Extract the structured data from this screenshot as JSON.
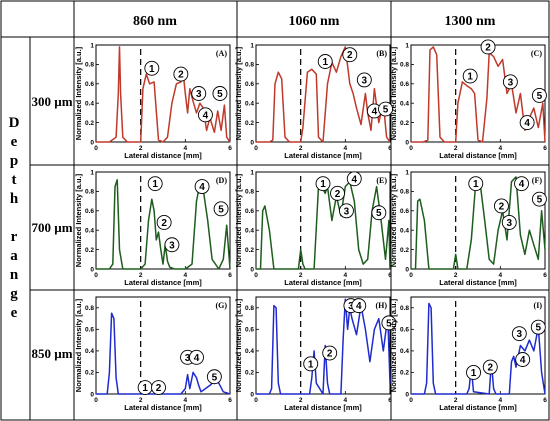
{
  "table": {
    "column_headers": [
      "860 nm",
      "1060 nm",
      "1300 nm"
    ],
    "row_headers": [
      "300 µm",
      "700 µm",
      "850 µm"
    ],
    "depth_letters": [
      "D",
      "e",
      "p",
      "t",
      "h",
      "r",
      "a",
      "n",
      "g",
      "e"
    ]
  },
  "chart_data": [
    {
      "panel": "(A)",
      "type": "line",
      "color": "#c0392b",
      "xlabel": "Lateral distance [mm]",
      "ylabel": "Normalized Intensity [a.u.]",
      "xlim": [
        0,
        6
      ],
      "ylim": [
        0,
        1
      ],
      "xticks": [
        "0",
        "2",
        "4",
        "6"
      ],
      "yticks": [
        "0",
        "0.2",
        "0.4",
        "0.6",
        "0.8",
        "1"
      ],
      "dashed_x": 2,
      "x": [
        0,
        0.6,
        0.9,
        1.0,
        1.05,
        1.1,
        1.2,
        1.4,
        1.6,
        2.0,
        2.1,
        2.25,
        2.4,
        2.6,
        2.8,
        3.0,
        3.2,
        3.4,
        3.6,
        3.8,
        3.9,
        4.0,
        4.1,
        4.2,
        4.35,
        4.5,
        4.65,
        4.8,
        4.95,
        5.1,
        5.3,
        5.45,
        5.6,
        5.75,
        5.85,
        6.0
      ],
      "y": [
        0,
        0,
        0.05,
        0.5,
        0.98,
        0.5,
        0.05,
        0,
        0,
        0,
        0.55,
        0.7,
        0.6,
        0.62,
        0.02,
        0,
        0.05,
        0.4,
        0.6,
        0.62,
        0.72,
        0.5,
        0.3,
        0.55,
        0.42,
        0.3,
        0.4,
        0.35,
        0.12,
        0.25,
        0.1,
        0.32,
        0.12,
        0.38,
        0.05,
        0
      ],
      "labels": [
        {
          "text": "1",
          "x": 2.5,
          "y": 0.76
        },
        {
          "text": "2",
          "x": 3.8,
          "y": 0.7
        },
        {
          "text": "3",
          "x": 4.6,
          "y": 0.5
        },
        {
          "text": "4",
          "x": 4.9,
          "y": 0.28
        },
        {
          "text": "5",
          "x": 5.55,
          "y": 0.5
        }
      ]
    },
    {
      "panel": "(B)",
      "type": "line",
      "color": "#c0392b",
      "xlabel": "Lateral distance [mm]",
      "ylabel": "Normalized Intensity [a.u.]",
      "xlim": [
        0,
        6
      ],
      "ylim": [
        0,
        1
      ],
      "xticks": [
        "0",
        "2",
        "4",
        "6"
      ],
      "yticks": [
        "0",
        "0.2",
        "0.4",
        "0.6",
        "0.8",
        "1"
      ],
      "dashed_x": 2,
      "x": [
        0,
        0.6,
        0.75,
        0.85,
        1.0,
        1.15,
        1.3,
        1.5,
        2.0,
        2.1,
        2.3,
        2.5,
        2.7,
        2.8,
        3.0,
        3.2,
        3.4,
        3.6,
        3.8,
        4.0,
        4.2,
        4.35,
        4.5,
        4.7,
        4.9,
        5.0,
        5.15,
        5.3,
        5.5,
        5.7,
        5.85,
        6.0
      ],
      "y": [
        0,
        0,
        0.02,
        0.6,
        0.72,
        0.65,
        0.05,
        0,
        0,
        0.15,
        0.72,
        0.75,
        0.7,
        0.05,
        0,
        0.6,
        0.82,
        0.72,
        0.88,
        0.98,
        0.6,
        0.5,
        0.35,
        0.18,
        0.5,
        0.3,
        0.12,
        0.55,
        0.2,
        0.4,
        0.05,
        0
      ],
      "labels": [
        {
          "text": "1",
          "x": 3.1,
          "y": 0.83
        },
        {
          "text": "2",
          "x": 4.2,
          "y": 0.9
        },
        {
          "text": "3",
          "x": 4.85,
          "y": 0.64
        },
        {
          "text": "4",
          "x": 5.3,
          "y": 0.32
        },
        {
          "text": "5",
          "x": 5.8,
          "y": 0.34
        }
      ]
    },
    {
      "panel": "(C)",
      "type": "line",
      "color": "#c0392b",
      "xlabel": "Lateral distance [mm]",
      "ylabel": "Normalized Intensity [a.u.]",
      "xlim": [
        0,
        6
      ],
      "ylim": [
        0,
        1
      ],
      "xticks": [
        "0",
        "2",
        "4",
        "6"
      ],
      "yticks": [
        "0",
        "0.2",
        "0.4",
        "0.6",
        "0.8",
        "1"
      ],
      "dashed_x": 2,
      "x": [
        0,
        0.55,
        0.75,
        0.85,
        1.0,
        1.15,
        1.3,
        1.5,
        2.0,
        2.1,
        2.3,
        2.5,
        2.7,
        2.85,
        3.0,
        3.2,
        3.4,
        3.5,
        3.7,
        3.9,
        4.1,
        4.3,
        4.5,
        4.7,
        4.9,
        5.1,
        5.3,
        5.5,
        5.7,
        5.9,
        6.0
      ],
      "y": [
        0,
        0,
        0.02,
        0.95,
        0.98,
        0.9,
        0.05,
        0,
        0,
        0.4,
        0.62,
        0.58,
        0.55,
        0.5,
        0.02,
        0,
        0.45,
        0.92,
        0.88,
        0.78,
        0.85,
        0.5,
        0.6,
        0.3,
        0.5,
        0.12,
        0.25,
        0.35,
        0.15,
        0.4,
        0
      ],
      "labels": [
        {
          "text": "1",
          "x": 2.65,
          "y": 0.68
        },
        {
          "text": "2",
          "x": 3.45,
          "y": 0.98
        },
        {
          "text": "3",
          "x": 4.45,
          "y": 0.62
        },
        {
          "text": "4",
          "x": 5.2,
          "y": 0.2
        },
        {
          "text": "5",
          "x": 5.75,
          "y": 0.48
        }
      ]
    },
    {
      "panel": "(D)",
      "type": "line",
      "color": "#1e5d1e",
      "xlabel": "Lateral distance [mm]",
      "ylabel": "Normalized Intensity [a.u.]",
      "xlim": [
        0,
        6
      ],
      "ylim": [
        0,
        1
      ],
      "xticks": [
        "0",
        "2",
        "4",
        "6"
      ],
      "yticks": [
        "0",
        "0.2",
        "0.4",
        "0.6",
        "0.8",
        "1"
      ],
      "dashed_x": 2,
      "x": [
        0,
        0.6,
        0.75,
        0.85,
        0.95,
        1.05,
        1.2,
        2.0,
        2.2,
        2.35,
        2.5,
        2.6,
        2.7,
        2.8,
        2.9,
        3.0,
        3.1,
        3.2,
        3.3,
        3.5,
        4.0,
        4.3,
        4.5,
        4.65,
        4.8,
        5.0,
        5.2,
        5.5,
        5.7,
        5.85,
        6.0
      ],
      "y": [
        0,
        0,
        0.05,
        0.85,
        0.92,
        0.2,
        0,
        0,
        0.05,
        0.5,
        0.72,
        0.6,
        0.3,
        0.38,
        0.2,
        0.05,
        0.25,
        0.08,
        0.02,
        0,
        0,
        0.05,
        0.7,
        0.88,
        0.82,
        0.5,
        0.1,
        0,
        0.1,
        0.45,
        0
      ],
      "labels": [
        {
          "text": "1",
          "x": 2.65,
          "y": 0.88
        },
        {
          "text": "2",
          "x": 3.05,
          "y": 0.48
        },
        {
          "text": "3",
          "x": 3.4,
          "y": 0.25
        },
        {
          "text": "4",
          "x": 4.75,
          "y": 0.85
        },
        {
          "text": "5",
          "x": 5.6,
          "y": 0.62
        }
      ]
    },
    {
      "panel": "(E)",
      "type": "line",
      "color": "#1e5d1e",
      "xlabel": "Lateral distance [mm]",
      "ylabel": "Normalized Intensity [a.u.]",
      "xlim": [
        0,
        6
      ],
      "ylim": [
        0,
        1
      ],
      "xticks": [
        "0",
        "2",
        "4",
        "6"
      ],
      "yticks": [
        "0",
        "0.2",
        "0.4",
        "0.6",
        "0.8",
        "1"
      ],
      "dashed_x": 2,
      "x": [
        0,
        0.2,
        0.3,
        0.4,
        0.6,
        0.8,
        1.9,
        2.0,
        2.1,
        2.2,
        2.6,
        2.8,
        2.9,
        3.0,
        3.1,
        3.2,
        3.4,
        3.6,
        3.8,
        4.0,
        4.2,
        4.4,
        4.6,
        4.8,
        5.0,
        5.2,
        5.4,
        5.6,
        5.8,
        5.95,
        6.0
      ],
      "y": [
        0,
        0,
        0.6,
        0.65,
        0.4,
        0,
        0,
        0.2,
        0.05,
        0,
        0,
        0.85,
        0.88,
        0.82,
        0.78,
        0.85,
        0.5,
        0.75,
        0.55,
        0.85,
        0.9,
        0.7,
        0.2,
        0.05,
        0.1,
        0.6,
        0.85,
        0.5,
        0.1,
        0.5,
        0
      ],
      "labels": [
        {
          "text": "1",
          "x": 3.0,
          "y": 0.88
        },
        {
          "text": "2",
          "x": 3.65,
          "y": 0.78
        },
        {
          "text": "3",
          "x": 4.05,
          "y": 0.6
        },
        {
          "text": "4",
          "x": 4.4,
          "y": 0.93
        },
        {
          "text": "5",
          "x": 5.5,
          "y": 0.58
        }
      ]
    },
    {
      "panel": "(F)",
      "type": "line",
      "color": "#1e5d1e",
      "xlabel": "Lateral distance [mm]",
      "ylabel": "Normalized Intensity [a.u.]",
      "xlim": [
        0,
        6
      ],
      "ylim": [
        0,
        1
      ],
      "xticks": [
        "0",
        "2",
        "4",
        "6"
      ],
      "yticks": [
        "0",
        "0.2",
        "0.4",
        "0.6",
        "0.8",
        "1"
      ],
      "dashed_x": 2,
      "x": [
        0,
        0.2,
        0.3,
        0.4,
        0.6,
        0.8,
        1.9,
        2.0,
        2.1,
        2.5,
        2.7,
        2.9,
        3.1,
        3.3,
        3.5,
        3.7,
        3.9,
        4.1,
        4.3,
        4.5,
        4.7,
        4.9,
        5.1,
        5.3,
        5.5,
        5.7,
        5.85,
        6.0
      ],
      "y": [
        0,
        0,
        0.7,
        0.72,
        0.5,
        0,
        0,
        0.15,
        0,
        0,
        0.3,
        0.9,
        0.88,
        0.5,
        0.1,
        0.05,
        0.4,
        0.6,
        0.3,
        0.9,
        0.95,
        0.35,
        0.15,
        0.4,
        0.25,
        0.1,
        0.6,
        0.2
      ],
      "labels": [
        {
          "text": "1",
          "x": 2.9,
          "y": 0.88
        },
        {
          "text": "2",
          "x": 4.05,
          "y": 0.65
        },
        {
          "text": "3",
          "x": 4.4,
          "y": 0.48
        },
        {
          "text": "4",
          "x": 4.95,
          "y": 0.88
        },
        {
          "text": "5",
          "x": 5.75,
          "y": 0.72
        }
      ]
    },
    {
      "panel": "(G)",
      "type": "line",
      "color": "#1f2bd0",
      "xlabel": "Lateral distance [mm]",
      "ylabel": "Normalized Intensity [a.u.]",
      "xlim": [
        0,
        6
      ],
      "ylim": [
        0,
        0.9
      ],
      "xticks": [
        "0",
        "2",
        "4",
        "6"
      ],
      "yticks": [
        "0",
        "0.2",
        "0.4",
        "0.6",
        "0.8"
      ],
      "dashed_x": 2,
      "x": [
        0,
        0.5,
        0.6,
        0.7,
        0.8,
        0.9,
        1.0,
        3.8,
        4.0,
        4.1,
        4.2,
        4.35,
        4.5,
        4.6,
        4.7,
        4.9,
        5.1,
        5.3,
        5.5,
        5.7,
        6.0
      ],
      "y": [
        0,
        0,
        0.2,
        0.75,
        0.7,
        0.15,
        0,
        0,
        0.05,
        0.18,
        0.05,
        0.2,
        0.15,
        0.08,
        0.02,
        0.05,
        0.08,
        0.12,
        0.1,
        0.02,
        0
      ],
      "labels": [
        {
          "text": "1",
          "x": 2.2,
          "y": 0.06
        },
        {
          "text": "2",
          "x": 2.8,
          "y": 0.06
        },
        {
          "text": "3",
          "x": 4.1,
          "y": 0.34
        },
        {
          "text": "4",
          "x": 4.5,
          "y": 0.34
        },
        {
          "text": "5",
          "x": 5.3,
          "y": 0.16
        }
      ]
    },
    {
      "panel": "(H)",
      "type": "line",
      "color": "#1f2bd0",
      "xlabel": "Lateral distance [mm]",
      "ylabel": "Normalized Intensity [a.u.]",
      "xlim": [
        0,
        6
      ],
      "ylim": [
        0,
        0.9
      ],
      "xticks": [
        "0",
        "2",
        "4",
        "6"
      ],
      "yticks": [
        "0",
        "0.2",
        "0.4",
        "0.6",
        "0.8"
      ],
      "dashed_x": 2,
      "x": [
        0,
        0.6,
        0.7,
        0.8,
        0.9,
        1.0,
        1.1,
        2.4,
        2.5,
        2.6,
        2.7,
        3.0,
        3.1,
        3.2,
        3.3,
        3.8,
        3.9,
        4.0,
        4.1,
        4.2,
        4.3,
        4.5,
        4.7,
        4.9,
        5.1,
        5.3,
        5.5,
        5.7,
        5.9,
        6.0
      ],
      "y": [
        0,
        0,
        0.05,
        0.82,
        0.8,
        0.1,
        0,
        0,
        0.15,
        0.4,
        0.1,
        0,
        0.45,
        0.1,
        0,
        0,
        0.5,
        0.88,
        0.6,
        0.8,
        0.7,
        0.55,
        0.82,
        0.6,
        0.3,
        0.6,
        0.7,
        0.4,
        0.72,
        0.1
      ],
      "labels": [
        {
          "text": "1",
          "x": 2.45,
          "y": 0.28
        },
        {
          "text": "2",
          "x": 3.3,
          "y": 0.38
        },
        {
          "text": "3",
          "x": 4.25,
          "y": 0.82
        },
        {
          "text": "4",
          "x": 4.6,
          "y": 0.82
        },
        {
          "text": "5",
          "x": 5.95,
          "y": 0.66
        }
      ]
    },
    {
      "panel": "(I)",
      "type": "line",
      "color": "#1f2bd0",
      "xlabel": "Lateral distance [mm]",
      "ylabel": "Normalized Intensity [a.u.]",
      "xlim": [
        0,
        6
      ],
      "ylim": [
        0,
        0.9
      ],
      "xticks": [
        "0",
        "2",
        "4",
        "6"
      ],
      "yticks": [
        "0",
        "0.2",
        "0.4",
        "0.6",
        "0.8"
      ],
      "dashed_x": 2,
      "x": [
        0,
        0.6,
        0.7,
        0.8,
        0.9,
        1.0,
        1.1,
        2.5,
        2.6,
        2.7,
        2.8,
        3.5,
        3.6,
        3.7,
        3.8,
        4.4,
        4.5,
        4.6,
        4.7,
        4.9,
        5.1,
        5.3,
        5.5,
        5.7,
        5.85,
        6.0
      ],
      "y": [
        0,
        0,
        0.1,
        0.84,
        0.8,
        0.1,
        0,
        0,
        0.05,
        0.25,
        0.02,
        0,
        0.3,
        0.05,
        0,
        0,
        0.3,
        0.35,
        0.25,
        0.45,
        0.4,
        0.5,
        0.4,
        0.62,
        0.2,
        0
      ],
      "labels": [
        {
          "text": "1",
          "x": 2.8,
          "y": 0.2
        },
        {
          "text": "2",
          "x": 3.55,
          "y": 0.25
        },
        {
          "text": "3",
          "x": 4.85,
          "y": 0.56
        },
        {
          "text": "4",
          "x": 5.0,
          "y": 0.32
        },
        {
          "text": "5",
          "x": 5.7,
          "y": 0.62
        }
      ]
    }
  ]
}
